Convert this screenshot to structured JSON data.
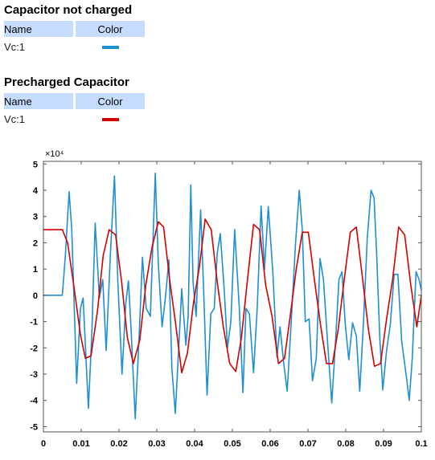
{
  "legends": [
    {
      "title": "Capacitor not charged",
      "header_name": "Name",
      "header_color": "Color",
      "rows": [
        {
          "name": "Vc:1",
          "color": "#1f8fd0"
        }
      ]
    },
    {
      "title": "Precharged Capacitor",
      "header_name": "Name",
      "header_color": "Color",
      "rows": [
        {
          "name": "Vc:1",
          "color": "#d40000"
        }
      ]
    }
  ],
  "chart_data": {
    "type": "line",
    "title": "",
    "xlabel": "",
    "ylabel": "",
    "y_multiplier_label": "×10⁴",
    "xlim": [
      0,
      0.1
    ],
    "ylim": [
      -5.2,
      5.1
    ],
    "x_ticks": [
      0,
      0.01,
      0.02,
      0.03,
      0.04,
      0.05,
      0.06,
      0.07,
      0.08,
      0.09,
      0.1
    ],
    "x_tick_labels": [
      "0",
      "0.01",
      "0.02",
      "0.03",
      "0.04",
      "0.05",
      "0.06",
      "0.07",
      "0.08",
      "0.09",
      "0.1"
    ],
    "y_ticks": [
      5,
      4,
      3,
      2,
      1,
      0,
      -1,
      -2,
      -3,
      -4,
      -5
    ],
    "y_tick_labels": [
      "5",
      "4",
      "3",
      "2",
      "1",
      "0",
      "-1",
      "-2",
      "-3",
      "-4",
      "-5"
    ],
    "grid": false,
    "series": [
      {
        "name": "Vc:1",
        "color": "#1f8fd0",
        "x": [
          0,
          0.005,
          0.0058,
          0.0068,
          0.0075,
          0.0088,
          0.0098,
          0.0105,
          0.0119,
          0.0128,
          0.0137,
          0.0148,
          0.0157,
          0.0166,
          0.0177,
          0.0188,
          0.0197,
          0.0208,
          0.0218,
          0.0225,
          0.0232,
          0.0243,
          0.0255,
          0.0262,
          0.0272,
          0.0283,
          0.0296,
          0.0304,
          0.0314,
          0.0322,
          0.0332,
          0.034,
          0.0349,
          0.0358,
          0.0366,
          0.0377,
          0.0383,
          0.039,
          0.0396,
          0.0404,
          0.0416,
          0.0424,
          0.0433,
          0.0443,
          0.0452,
          0.046,
          0.0468,
          0.0478,
          0.0487,
          0.0496,
          0.0506,
          0.0518,
          0.0528,
          0.0536,
          0.0545,
          0.0556,
          0.0566,
          0.0576,
          0.0585,
          0.0595,
          0.0607,
          0.0618,
          0.0626,
          0.0636,
          0.0645,
          0.0655,
          0.0667,
          0.0677,
          0.0685,
          0.0693,
          0.0703,
          0.0712,
          0.0722,
          0.0732,
          0.0741,
          0.0752,
          0.0763,
          0.0772,
          0.0782,
          0.079,
          0.0799,
          0.0808,
          0.0818,
          0.0828,
          0.0837,
          0.0847,
          0.0857,
          0.0867,
          0.0875,
          0.0882,
          0.089,
          0.0898,
          0.0908,
          0.0918,
          0.0928,
          0.0938,
          0.0948,
          0.096,
          0.0968,
          0.0976,
          0.0986,
          0.0994,
          0.1
        ],
        "y": [
          0,
          0,
          1.5,
          3.95,
          2.5,
          -3.35,
          -0.5,
          -0.1,
          -4.3,
          -1.5,
          2.75,
          -0.1,
          0.6,
          -2.1,
          1.5,
          4.55,
          0.5,
          -3.0,
          -0.3,
          0.55,
          -1.3,
          -4.7,
          -1.0,
          1.45,
          -0.5,
          -0.8,
          4.65,
          1.2,
          -1.2,
          -0.2,
          1.35,
          -2.8,
          -4.5,
          -2.0,
          0.25,
          -1.9,
          -0.8,
          4.2,
          0.5,
          -0.8,
          3.25,
          0.2,
          -3.8,
          -0.7,
          -0.5,
          1.6,
          2.35,
          0.3,
          -2.0,
          -1.0,
          2.5,
          -0.4,
          -3.7,
          -0.5,
          -0.7,
          -2.95,
          -0.4,
          3.4,
          1.0,
          3.38,
          0.9,
          -2.35,
          -1.2,
          -2.6,
          -3.65,
          -1.2,
          1.95,
          4.0,
          2.5,
          -1.0,
          -0.9,
          -3.25,
          -2.4,
          1.4,
          0.6,
          -1.8,
          -4.1,
          -2.0,
          0.6,
          0.9,
          -1.15,
          -2.45,
          -1.05,
          -1.55,
          -3.65,
          -1.0,
          2.2,
          4.0,
          3.7,
          1.5,
          -1.6,
          -3.6,
          -2.1,
          -1.1,
          0.8,
          0.8,
          -1.75,
          -3.05,
          -4.0,
          -2.4,
          0.9,
          0.6,
          0.2
        ]
      },
      {
        "name": "Vc:1",
        "color": "#d40000",
        "x": [
          0,
          0.005,
          0.0064,
          0.0082,
          0.0098,
          0.0111,
          0.0126,
          0.0143,
          0.0158,
          0.0174,
          0.0191,
          0.0207,
          0.0222,
          0.0238,
          0.0255,
          0.0271,
          0.0287,
          0.0304,
          0.0318,
          0.0334,
          0.035,
          0.0366,
          0.0381,
          0.0397,
          0.0413,
          0.0428,
          0.0444,
          0.046,
          0.0476,
          0.0493,
          0.0509,
          0.0524,
          0.054,
          0.0556,
          0.0572,
          0.0588,
          0.0605,
          0.0622,
          0.0638,
          0.0653,
          0.0669,
          0.0685,
          0.0701,
          0.0717,
          0.0733,
          0.0749,
          0.0765,
          0.078,
          0.0796,
          0.0812,
          0.0828,
          0.0844,
          0.086,
          0.0876,
          0.0892,
          0.0908,
          0.0924,
          0.094,
          0.0956,
          0.0972,
          0.0988,
          0.1
        ],
        "y": [
          2.5,
          2.5,
          2.0,
          0.2,
          -1.5,
          -2.4,
          -2.3,
          -0.6,
          1.5,
          2.5,
          2.3,
          0.5,
          -1.6,
          -2.6,
          -1.7,
          0.4,
          1.8,
          2.8,
          2.6,
          0.6,
          -1.1,
          -2.95,
          -2.2,
          -0.3,
          1.1,
          2.9,
          2.5,
          0.5,
          -1.2,
          -2.6,
          -2.9,
          -1.6,
          0.6,
          2.7,
          2.5,
          0.4,
          -0.8,
          -2.6,
          -2.4,
          -0.8,
          1.0,
          2.4,
          2.4,
          0.6,
          -1.1,
          -2.6,
          -2.6,
          -1.3,
          0.6,
          2.4,
          2.6,
          0.7,
          -1.3,
          -2.7,
          -2.6,
          -0.9,
          0.6,
          2.6,
          2.3,
          0.4,
          -1.2,
          0.0
        ]
      }
    ]
  }
}
